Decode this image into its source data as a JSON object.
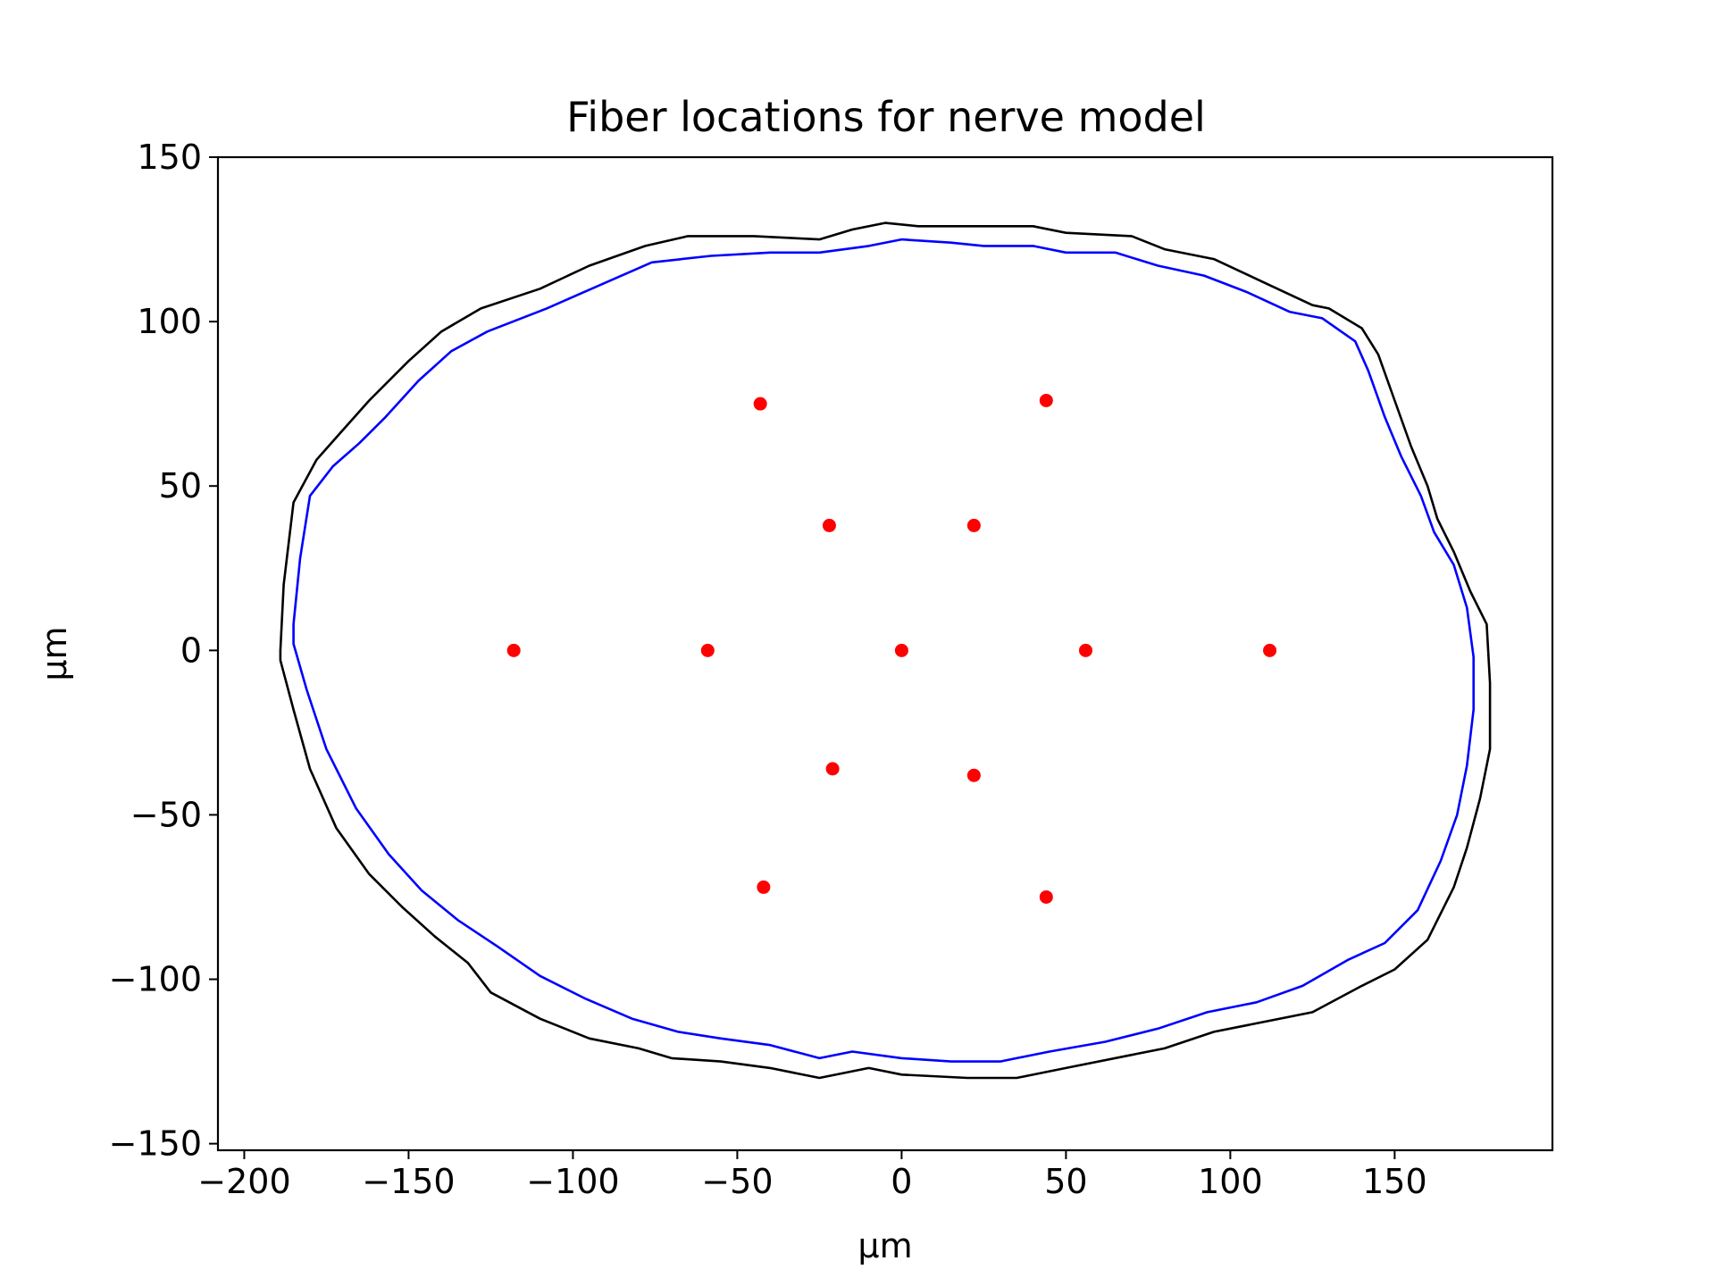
{
  "chart_data": {
    "type": "scatter",
    "title": "Fiber locations for nerve model",
    "xlabel": "µm",
    "ylabel": "µm",
    "xlim": [
      -208,
      198
    ],
    "ylim": [
      -152,
      150
    ],
    "xticks": [
      {
        "value": -200,
        "label": "−200"
      },
      {
        "value": -150,
        "label": "−150"
      },
      {
        "value": -100,
        "label": "−100"
      },
      {
        "value": -50,
        "label": "−50"
      },
      {
        "value": 0,
        "label": "0"
      },
      {
        "value": 50,
        "label": "50"
      },
      {
        "value": 100,
        "label": "100"
      },
      {
        "value": 150,
        "label": "150"
      }
    ],
    "yticks": [
      {
        "value": -150,
        "label": "−150"
      },
      {
        "value": -100,
        "label": "−100"
      },
      {
        "value": -50,
        "label": "−50"
      },
      {
        "value": 0,
        "label": "0"
      },
      {
        "value": 50,
        "label": "50"
      },
      {
        "value": 100,
        "label": "100"
      },
      {
        "value": 150,
        "label": "150"
      }
    ],
    "grid": false,
    "colors": {
      "outer": "#000000",
      "inner": "#0000ff",
      "points": "#ff0000"
    },
    "outer_boundary": [
      [
        -189,
        0
      ],
      [
        -188,
        20
      ],
      [
        -185,
        45
      ],
      [
        -178,
        58
      ],
      [
        -170,
        67
      ],
      [
        -162,
        76
      ],
      [
        -150,
        88
      ],
      [
        -140,
        97
      ],
      [
        -128,
        104
      ],
      [
        -110,
        110
      ],
      [
        -95,
        117
      ],
      [
        -78,
        123
      ],
      [
        -65,
        126
      ],
      [
        -45,
        126
      ],
      [
        -25,
        125
      ],
      [
        -15,
        128
      ],
      [
        -5,
        130
      ],
      [
        5,
        129
      ],
      [
        20,
        129
      ],
      [
        40,
        129
      ],
      [
        50,
        127
      ],
      [
        70,
        126
      ],
      [
        80,
        122
      ],
      [
        95,
        119
      ],
      [
        110,
        112
      ],
      [
        125,
        105
      ],
      [
        130,
        104
      ],
      [
        140,
        98
      ],
      [
        145,
        90
      ],
      [
        150,
        76
      ],
      [
        155,
        62
      ],
      [
        160,
        50
      ],
      [
        163,
        40
      ],
      [
        168,
        30
      ],
      [
        173,
        18
      ],
      [
        178,
        8
      ],
      [
        179,
        -10
      ],
      [
        179,
        -30
      ],
      [
        176,
        -45
      ],
      [
        172,
        -60
      ],
      [
        168,
        -72
      ],
      [
        160,
        -88
      ],
      [
        150,
        -97
      ],
      [
        140,
        -102
      ],
      [
        125,
        -110
      ],
      [
        110,
        -113
      ],
      [
        95,
        -116
      ],
      [
        80,
        -121
      ],
      [
        70,
        -123
      ],
      [
        50,
        -127
      ],
      [
        35,
        -130
      ],
      [
        20,
        -130
      ],
      [
        0,
        -129
      ],
      [
        -10,
        -127
      ],
      [
        -25,
        -130
      ],
      [
        -40,
        -127
      ],
      [
        -55,
        -125
      ],
      [
        -70,
        -124
      ],
      [
        -80,
        -121
      ],
      [
        -95,
        -118
      ],
      [
        -110,
        -112
      ],
      [
        -125,
        -104
      ],
      [
        -132,
        -95
      ],
      [
        -142,
        -87
      ],
      [
        -152,
        -78
      ],
      [
        -162,
        -68
      ],
      [
        -172,
        -54
      ],
      [
        -180,
        -36
      ],
      [
        -185,
        -18
      ],
      [
        -189,
        -3
      ],
      [
        -189,
        0
      ]
    ],
    "inner_boundary": [
      [
        -185,
        8
      ],
      [
        -183,
        28
      ],
      [
        -180,
        47
      ],
      [
        -173,
        56
      ],
      [
        -165,
        63
      ],
      [
        -157,
        71
      ],
      [
        -147,
        82
      ],
      [
        -137,
        91
      ],
      [
        -126,
        97
      ],
      [
        -108,
        104
      ],
      [
        -92,
        111
      ],
      [
        -76,
        118
      ],
      [
        -58,
        120
      ],
      [
        -40,
        121
      ],
      [
        -25,
        121
      ],
      [
        -10,
        123
      ],
      [
        0,
        125
      ],
      [
        15,
        124
      ],
      [
        25,
        123
      ],
      [
        40,
        123
      ],
      [
        50,
        121
      ],
      [
        65,
        121
      ],
      [
        78,
        117
      ],
      [
        92,
        114
      ],
      [
        105,
        109
      ],
      [
        118,
        103
      ],
      [
        128,
        101
      ],
      [
        138,
        94
      ],
      [
        142,
        85
      ],
      [
        147,
        71
      ],
      [
        152,
        59
      ],
      [
        158,
        47
      ],
      [
        162,
        36
      ],
      [
        168,
        26
      ],
      [
        172,
        13
      ],
      [
        174,
        -2
      ],
      [
        174,
        -18
      ],
      [
        172,
        -35
      ],
      [
        169,
        -50
      ],
      [
        164,
        -64
      ],
      [
        157,
        -79
      ],
      [
        147,
        -89
      ],
      [
        136,
        -94
      ],
      [
        122,
        -102
      ],
      [
        108,
        -107
      ],
      [
        93,
        -110
      ],
      [
        78,
        -115
      ],
      [
        62,
        -119
      ],
      [
        45,
        -122
      ],
      [
        30,
        -125
      ],
      [
        15,
        -125
      ],
      [
        0,
        -124
      ],
      [
        -15,
        -122
      ],
      [
        -25,
        -124
      ],
      [
        -40,
        -120
      ],
      [
        -55,
        -118
      ],
      [
        -68,
        -116
      ],
      [
        -82,
        -112
      ],
      [
        -96,
        -106
      ],
      [
        -110,
        -99
      ],
      [
        -123,
        -90
      ],
      [
        -135,
        -82
      ],
      [
        -146,
        -73
      ],
      [
        -156,
        -62
      ],
      [
        -166,
        -48
      ],
      [
        -175,
        -30
      ],
      [
        -181,
        -12
      ],
      [
        -185,
        2
      ],
      [
        -185,
        8
      ]
    ],
    "points": [
      {
        "x": 0,
        "y": 0
      },
      {
        "x": 56,
        "y": 0
      },
      {
        "x": 112,
        "y": 0
      },
      {
        "x": -59,
        "y": 0
      },
      {
        "x": -118,
        "y": 0
      },
      {
        "x": 22,
        "y": 38
      },
      {
        "x": -22,
        "y": 38
      },
      {
        "x": 44,
        "y": 76
      },
      {
        "x": -43,
        "y": 75
      },
      {
        "x": -21,
        "y": -36
      },
      {
        "x": 22,
        "y": -38
      },
      {
        "x": -42,
        "y": -72
      },
      {
        "x": 44,
        "y": -75
      }
    ]
  }
}
